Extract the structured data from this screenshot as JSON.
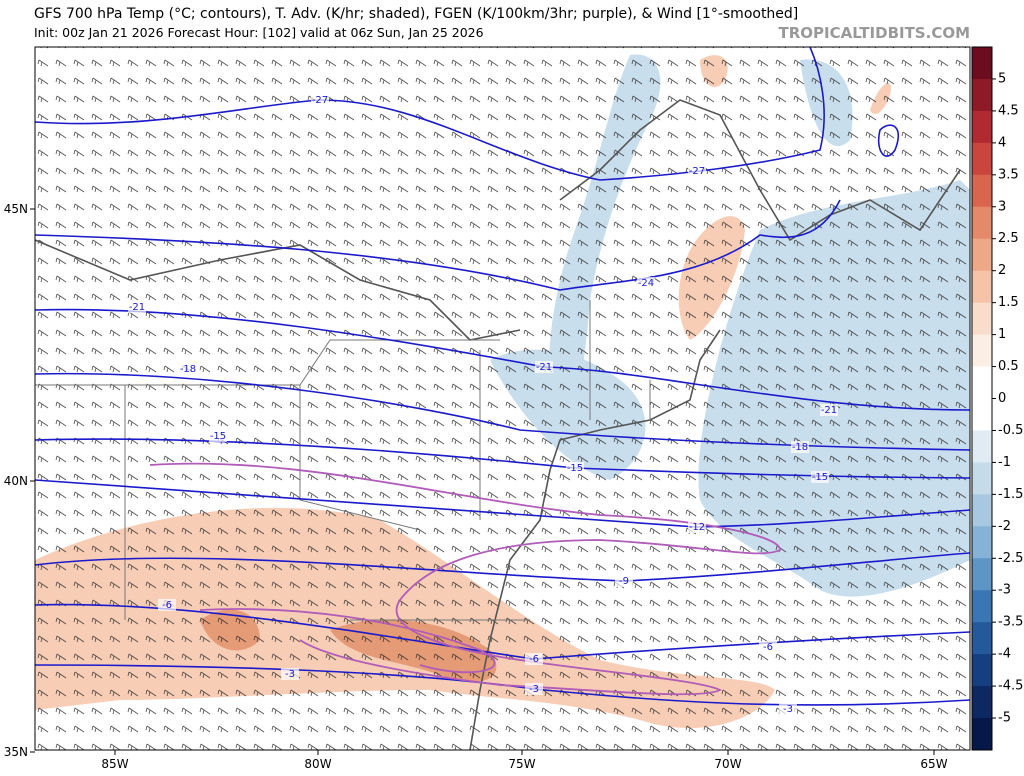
{
  "header": {
    "title": "GFS 700 hPa Temp (°C; contours), T. Adv. (K/hr; shaded), FGEN (K/100km/3hr; purple), & Wind [1°-smoothed]",
    "subtitle": "Init: 00z Jan 21 2026   Forecast Hour: [102]   valid at 06z Sun, Jan 25 2026",
    "brand": "TROPICALTIDBITS.COM"
  },
  "axes": {
    "lat_labels": [
      "45N",
      "40N",
      "35N"
    ],
    "lon_labels": [
      "85W",
      "80W",
      "75W",
      "70W",
      "65W"
    ]
  },
  "colorbar": {
    "labels": [
      5,
      4.5,
      4,
      3.5,
      3,
      2.5,
      2,
      1.5,
      1,
      0.5,
      0,
      -0.5,
      -1,
      -1.5,
      -2,
      -2.5,
      -3,
      -3.5,
      -4,
      -4.5,
      -5
    ]
  },
  "contour_labels": [
    -27,
    -27,
    -24,
    -21,
    -21,
    -21,
    -18,
    -18,
    -15,
    -15,
    -15,
    -12,
    -9,
    -6,
    -6,
    -6,
    -3,
    -3,
    -3
  ]
}
